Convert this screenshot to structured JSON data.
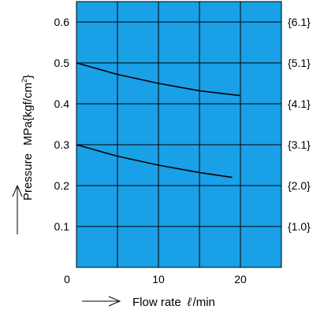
{
  "chart_data": {
    "type": "line",
    "xlabel": "Flow rate",
    "xlabel_symbol": "ℓ",
    "xlabel_unit": "/min",
    "ylabel": "Pressure",
    "ylabel_unit": "MPa{kgf/cm",
    "ylabel_unit_sup": "2",
    "ylabel_unit_close": "}",
    "xlim": [
      0,
      25
    ],
    "ylim": [
      0,
      0.65
    ],
    "x_ticks": [
      0,
      10,
      20
    ],
    "y_ticks": [
      0.1,
      0.2,
      0.3,
      0.4,
      0.5,
      0.6
    ],
    "y_tick_labels": [
      "0.1",
      "0.2",
      "0.3",
      "0.4",
      "0.5",
      "0.6"
    ],
    "y2_tick_labels": [
      "{1.0}",
      "{2.0}",
      "{3.1}",
      "{4.1}",
      "{5.1}",
      "{6.1}"
    ],
    "x_gridlines": [
      5,
      10,
      15,
      20
    ],
    "y_gridlines": [
      0.1,
      0.2,
      0.3,
      0.4,
      0.5,
      0.6
    ],
    "grid": true,
    "background_color": "#1AA0E6",
    "line_color": "#000000",
    "series": [
      {
        "x": [
          0,
          5,
          10,
          15,
          20
        ],
        "y": [
          0.5,
          0.472,
          0.45,
          0.432,
          0.42
        ]
      },
      {
        "x": [
          0,
          5,
          10,
          15,
          19
        ],
        "y": [
          0.3,
          0.272,
          0.25,
          0.232,
          0.22
        ]
      }
    ]
  }
}
